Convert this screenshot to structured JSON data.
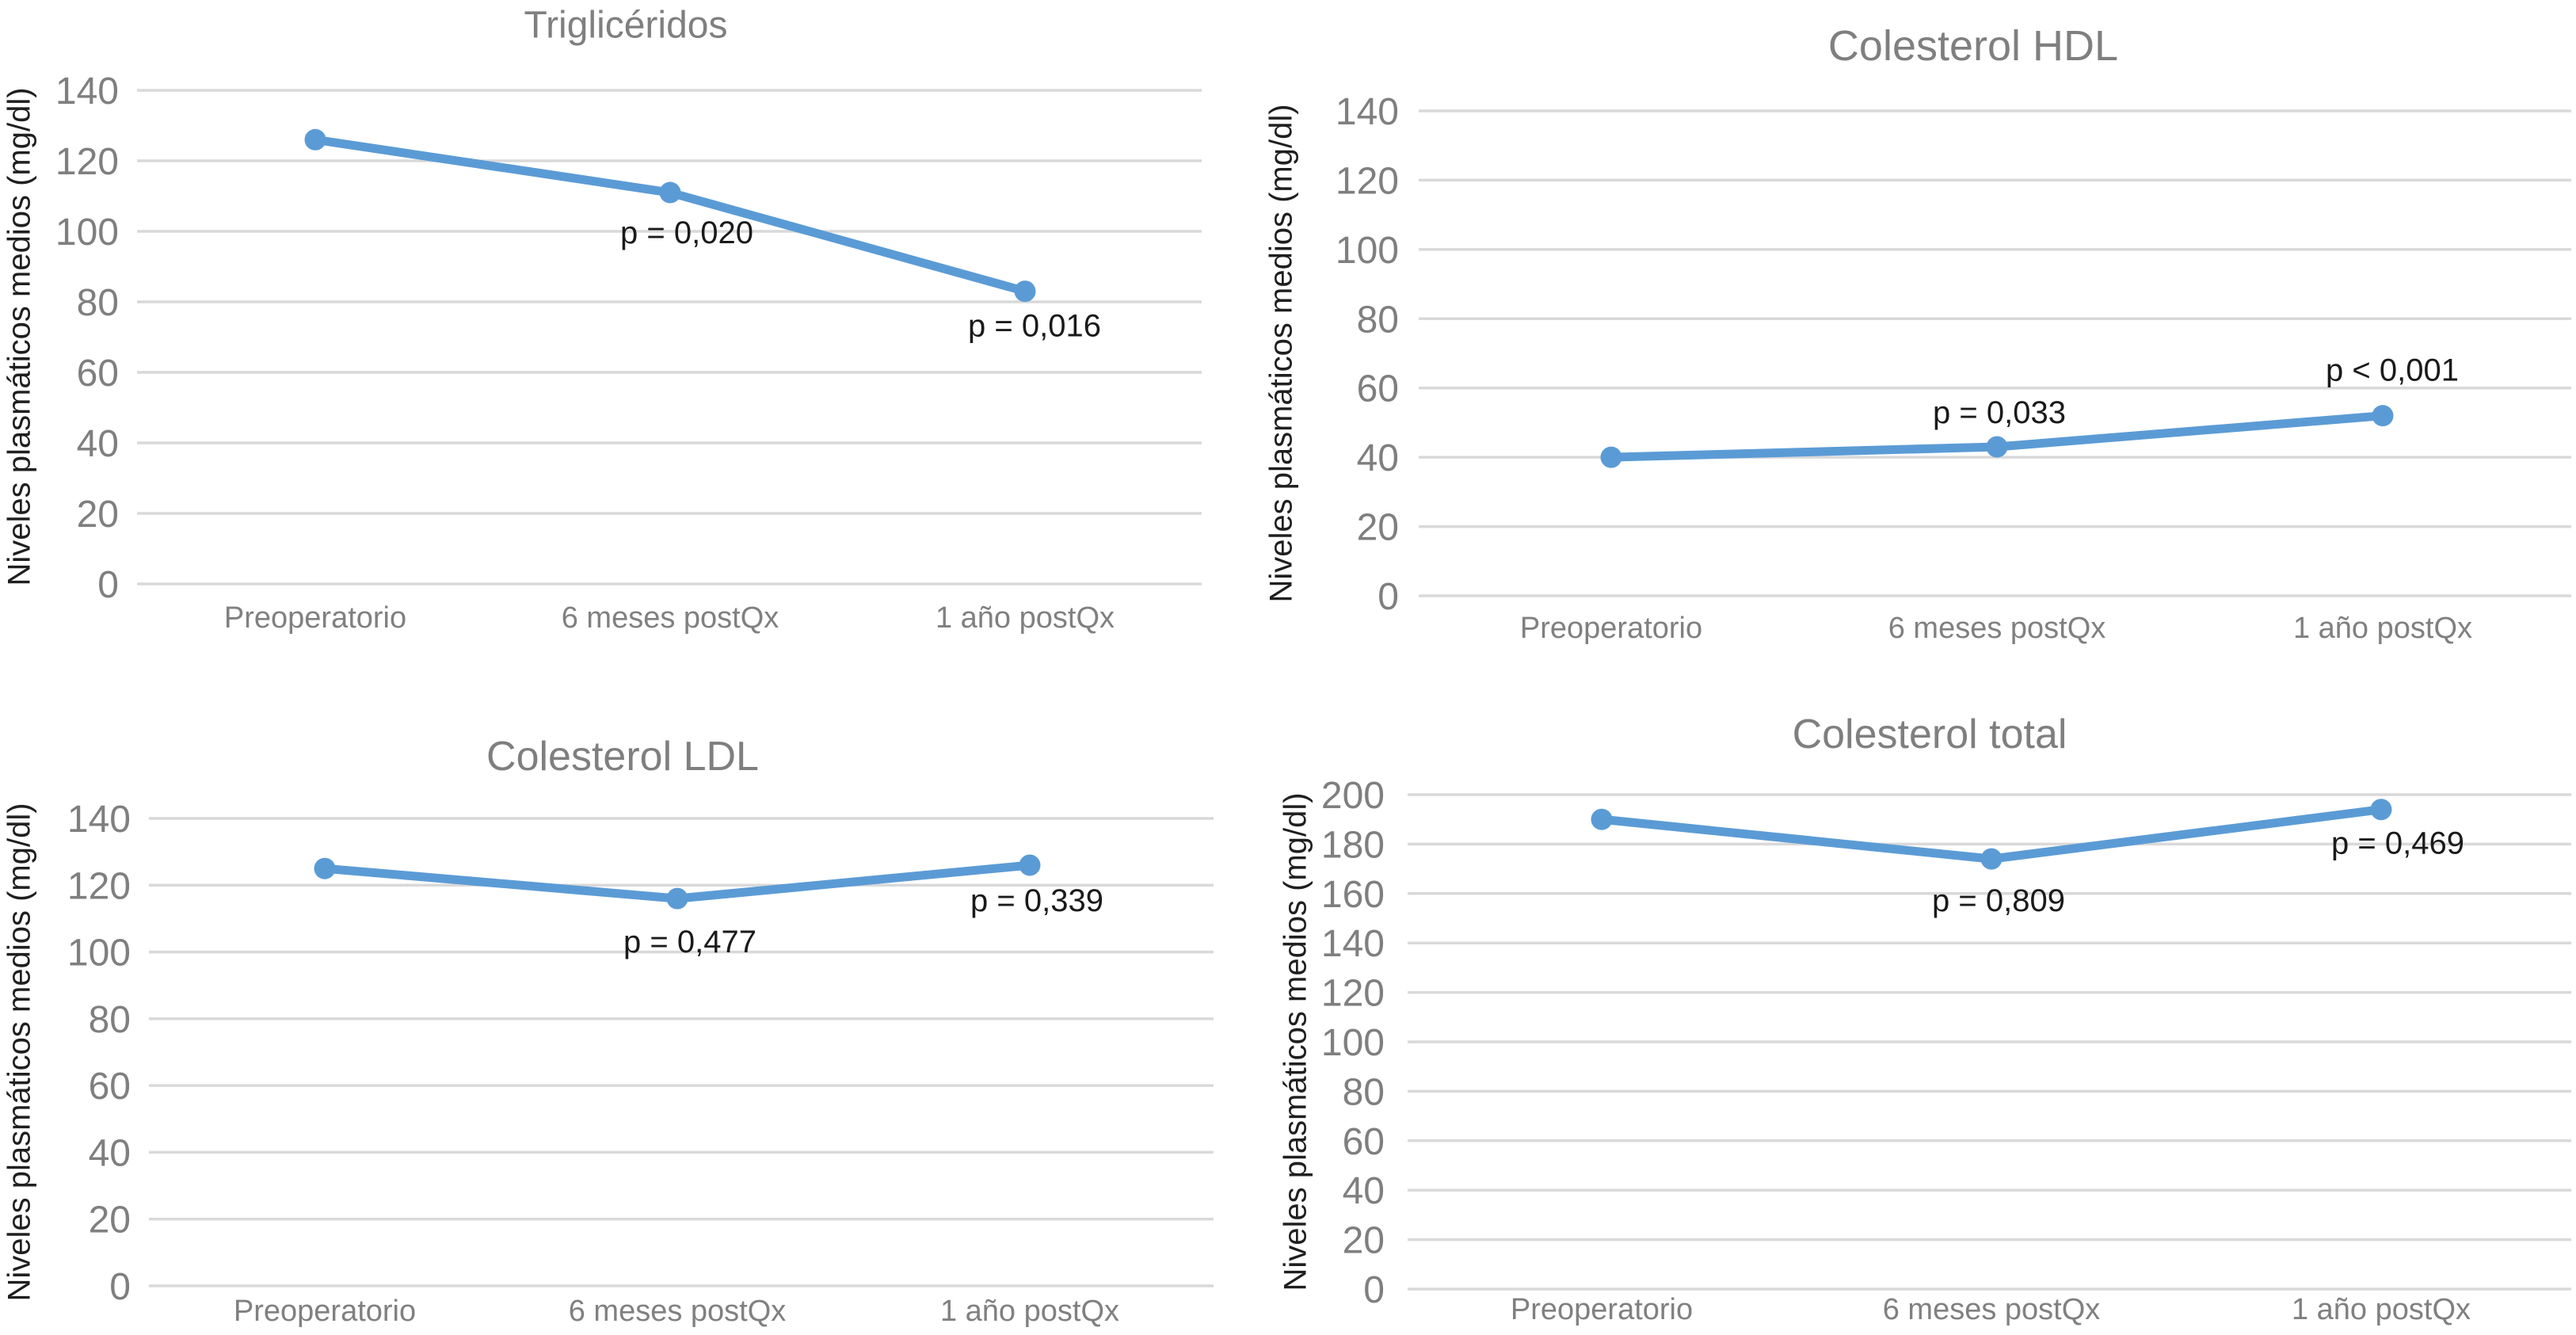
{
  "figure": {
    "background": "#ffffff",
    "description_texts": {
      "shared_y_axis_title": "Niveles plasmáticos medios (mg/dl)"
    }
  },
  "colors": {
    "line": "#5B9BD5",
    "marker": "#5B9BD5",
    "gridline": "#D9D9D9",
    "title": "#7F7F7F",
    "tick_label": "#7F7F7F",
    "x_label": "#808080",
    "axis_title": "#1f1f1f",
    "annotation": "#1a1a1a"
  },
  "chart_data": [
    {
      "type": "line",
      "title": "Triglicéridos",
      "ylabel": "Niveles plasmáticos medios (mg/dl)",
      "xlabel": "",
      "categories": [
        "Preoperatorio",
        "6 meses postQx",
        "1 año postQx"
      ],
      "values": [
        126,
        111,
        83
      ],
      "ylim": [
        0,
        140
      ],
      "ytick_step": 20,
      "yticks": [
        0,
        20,
        40,
        60,
        80,
        100,
        120,
        140
      ],
      "grid": true,
      "legend": null,
      "line_color": "#5B9BD5",
      "marker": "circle",
      "annotations": [
        {
          "text": "p = 0,020",
          "point_index": 1
        },
        {
          "text": "p = 0,016",
          "point_index": 2
        }
      ]
    },
    {
      "type": "line",
      "title": "Colesterol HDL",
      "ylabel": "Niveles plasmáticos medios (mg/dl)",
      "xlabel": "",
      "categories": [
        "Preoperatorio",
        "6 meses postQx",
        "1 año postQx"
      ],
      "values": [
        40,
        43,
        52
      ],
      "ylim": [
        0,
        140
      ],
      "ytick_step": 20,
      "yticks": [
        0,
        20,
        40,
        60,
        80,
        100,
        120,
        140
      ],
      "grid": true,
      "legend": null,
      "line_color": "#5B9BD5",
      "marker": "circle",
      "annotations": [
        {
          "text": "p = 0,033",
          "point_index": 1
        },
        {
          "text": "p < 0,001",
          "point_index": 2
        }
      ]
    },
    {
      "type": "line",
      "title": "Colesterol LDL",
      "ylabel": "Niveles plasmáticos medios (mg/dl)",
      "xlabel": "",
      "categories": [
        "Preoperatorio",
        "6 meses postQx",
        "1 año postQx"
      ],
      "values": [
        125,
        116,
        126
      ],
      "ylim": [
        0,
        140
      ],
      "ytick_step": 20,
      "yticks": [
        0,
        20,
        40,
        60,
        80,
        100,
        120,
        140
      ],
      "grid": true,
      "legend": null,
      "line_color": "#5B9BD5",
      "marker": "circle",
      "annotations": [
        {
          "text": "p = 0,477",
          "point_index": 1
        },
        {
          "text": "p = 0,339",
          "point_index": 2
        }
      ]
    },
    {
      "type": "line",
      "title": "Colesterol total",
      "ylabel": "Niveles plasmáticos medios (mg/dl)",
      "xlabel": "",
      "categories": [
        "Preoperatorio",
        "6 meses postQx",
        "1 año postQx"
      ],
      "values": [
        190,
        174,
        194
      ],
      "ylim": [
        0,
        200
      ],
      "ytick_step": 20,
      "yticks": [
        0,
        20,
        40,
        60,
        80,
        100,
        120,
        140,
        160,
        180,
        200
      ],
      "grid": true,
      "legend": null,
      "line_color": "#5B9BD5",
      "marker": "circle",
      "annotations": [
        {
          "text": "p = 0,809",
          "point_index": 1
        },
        {
          "text": "p = 0,469",
          "point_index": 2
        }
      ]
    }
  ]
}
